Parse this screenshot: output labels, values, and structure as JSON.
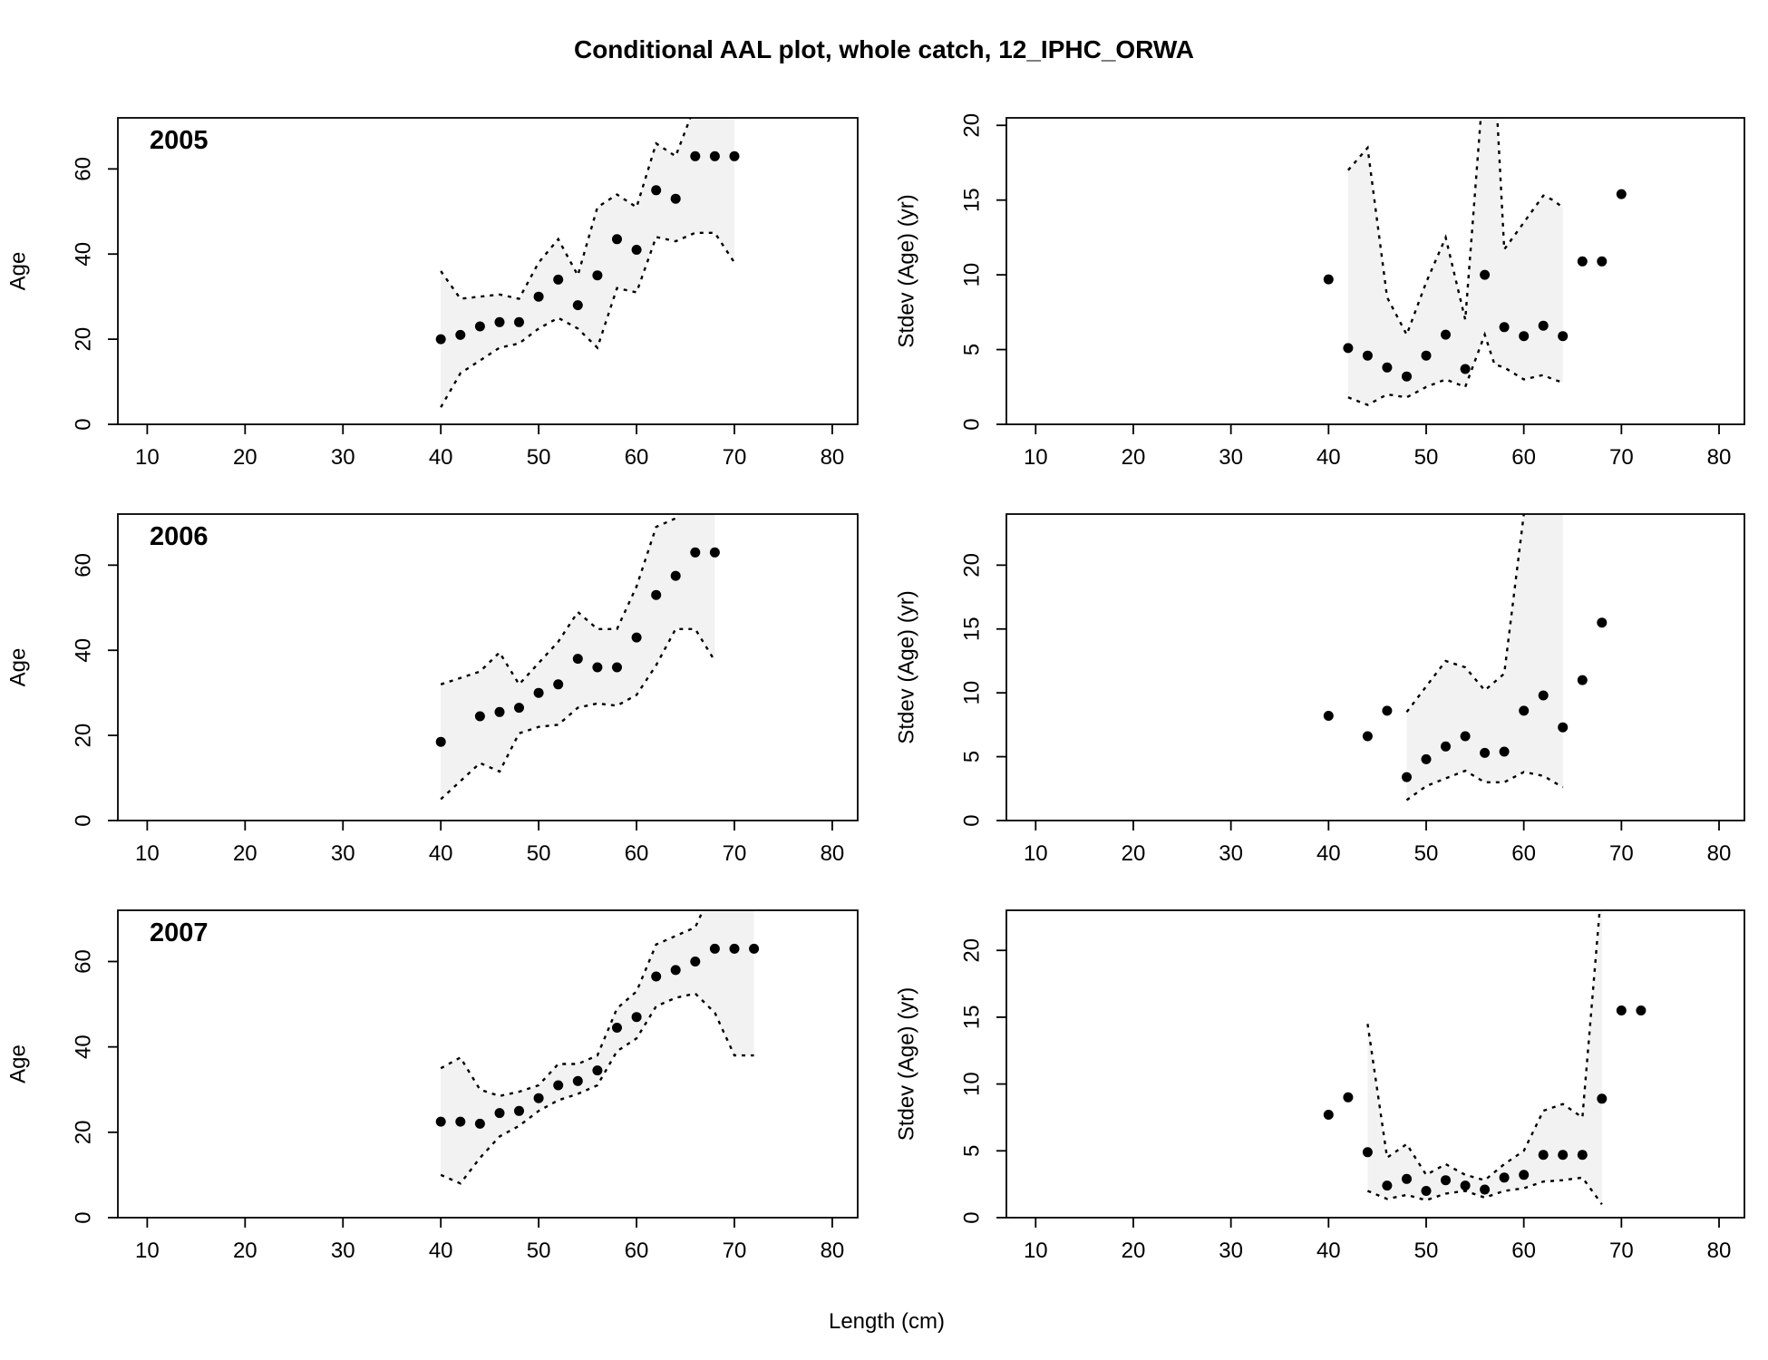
{
  "title": "Conditional AAL plot, whole catch, 12_IPHC_ORWA",
  "xlabel": "Length (cm)",
  "chart_data": [
    {
      "type": "scatter",
      "year": "2005",
      "ylabel": "Age",
      "xlim": [
        10,
        80
      ],
      "ylim": [
        0,
        72
      ],
      "yticks": [
        0,
        20,
        40,
        60
      ],
      "xticks": [
        10,
        20,
        30,
        40,
        50,
        60,
        70,
        80
      ],
      "points": {
        "x": [
          40,
          42,
          44,
          46,
          48,
          50,
          52,
          54,
          56,
          58,
          60,
          62,
          64,
          66,
          68,
          70
        ],
        "y": [
          20,
          21,
          23,
          24,
          24,
          30,
          34,
          28,
          35,
          43.5,
          41,
          55,
          53,
          63,
          63,
          63
        ]
      },
      "band": {
        "x": [
          40,
          42,
          44,
          46,
          48,
          50,
          52,
          54,
          56,
          58,
          60,
          62,
          64,
          66,
          68,
          70
        ],
        "upper": [
          36,
          29.5,
          30,
          30.5,
          29.5,
          38,
          43.5,
          35,
          51,
          54,
          51,
          66,
          63,
          75,
          100,
          100
        ],
        "lower": [
          4,
          12,
          15,
          18,
          19,
          22.5,
          25,
          22.5,
          18,
          32,
          31,
          44,
          43,
          45,
          45,
          38
        ]
      }
    },
    {
      "type": "scatter",
      "year": "",
      "ylabel": "Stdev (Age) (yr)",
      "xlim": [
        10,
        80
      ],
      "ylim": [
        0,
        20.5
      ],
      "yticks": [
        0,
        5,
        10,
        15,
        20
      ],
      "xticks": [
        10,
        20,
        30,
        40,
        50,
        60,
        70,
        80
      ],
      "points": {
        "x": [
          40,
          42,
          44,
          46,
          48,
          50,
          52,
          54,
          56,
          58,
          60,
          62,
          64,
          66,
          68,
          70
        ],
        "y": [
          9.7,
          5.1,
          4.6,
          3.8,
          3.2,
          4.6,
          6,
          3.7,
          10,
          6.5,
          5.9,
          6.6,
          5.9,
          10.9,
          10.9,
          15.4
        ]
      },
      "band": {
        "x": [
          42,
          44,
          46,
          48,
          50,
          52,
          54,
          56,
          57,
          58,
          60,
          62,
          63,
          64
        ],
        "upper": [
          17,
          18.5,
          8.5,
          6,
          9.5,
          12.5,
          7,
          24,
          24,
          11.7,
          13.5,
          15.3,
          15,
          14.5
        ],
        "lower": [
          1.8,
          1.3,
          2,
          1.8,
          2.5,
          3,
          2.5,
          6,
          4,
          3.8,
          3,
          3.3,
          3,
          2.8
        ]
      }
    },
    {
      "type": "scatter",
      "year": "2006",
      "ylabel": "Age",
      "xlim": [
        10,
        80
      ],
      "ylim": [
        0,
        72
      ],
      "yticks": [
        0,
        20,
        40,
        60
      ],
      "xticks": [
        10,
        20,
        30,
        40,
        50,
        60,
        70,
        80
      ],
      "points": {
        "x": [
          40,
          44,
          46,
          48,
          50,
          52,
          54,
          56,
          58,
          60,
          62,
          64,
          66,
          68
        ],
        "y": [
          18.5,
          24.5,
          25.5,
          26.5,
          30,
          32,
          38,
          36,
          36,
          43,
          53,
          57.5,
          63,
          63
        ]
      },
      "band": {
        "x": [
          40,
          44,
          46,
          48,
          50,
          52,
          54,
          56,
          58,
          60,
          62,
          64,
          66,
          68
        ],
        "upper": [
          32,
          35,
          39.5,
          32,
          37,
          42,
          49,
          45,
          45,
          55,
          69,
          71,
          80,
          80
        ],
        "lower": [
          5,
          13.5,
          11.5,
          20.5,
          22,
          22.5,
          26.5,
          27.5,
          27,
          29.5,
          36.5,
          45,
          45,
          37.5
        ]
      }
    },
    {
      "type": "scatter",
      "year": "",
      "ylabel": "Stdev (Age) (yr)",
      "xlim": [
        10,
        80
      ],
      "ylim": [
        0,
        24
      ],
      "yticks": [
        0,
        5,
        10,
        15,
        20
      ],
      "xticks": [
        10,
        20,
        30,
        40,
        50,
        60,
        70,
        80
      ],
      "points": {
        "x": [
          40,
          44,
          46,
          48,
          50,
          52,
          54,
          56,
          58,
          60,
          62,
          64,
          66,
          68
        ],
        "y": [
          8.2,
          6.6,
          8.6,
          3.4,
          4.8,
          5.8,
          6.6,
          5.3,
          5.4,
          8.6,
          9.8,
          7.3,
          11,
          15.5
        ]
      },
      "band": {
        "x": [
          48,
          50,
          52,
          54,
          56,
          58,
          60,
          62,
          64
        ],
        "upper": [
          8.5,
          10.5,
          12.5,
          12,
          10.2,
          11.5,
          24,
          30,
          30
        ],
        "lower": [
          1.6,
          2.7,
          3.3,
          3.9,
          3,
          3,
          3.8,
          3.5,
          2.6
        ]
      }
    },
    {
      "type": "scatter",
      "year": "2007",
      "ylabel": "Age",
      "xlim": [
        10,
        80
      ],
      "ylim": [
        0,
        72
      ],
      "yticks": [
        0,
        20,
        40,
        60
      ],
      "xticks": [
        10,
        20,
        30,
        40,
        50,
        60,
        70,
        80
      ],
      "points": {
        "x": [
          40,
          42,
          44,
          46,
          48,
          50,
          52,
          54,
          56,
          58,
          60,
          62,
          64,
          66,
          68,
          70,
          72
        ],
        "y": [
          22.5,
          22.5,
          22,
          24.5,
          25,
          28,
          31,
          32,
          34.5,
          44.5,
          47,
          56.5,
          58,
          60,
          63,
          63,
          63
        ]
      },
      "band": {
        "x": [
          40,
          42,
          44,
          46,
          48,
          50,
          52,
          54,
          56,
          58,
          60,
          62,
          64,
          66,
          68,
          70,
          72
        ],
        "upper": [
          35,
          37.5,
          30,
          28.5,
          29.5,
          31,
          36,
          36,
          38,
          49,
          53,
          64,
          66,
          68,
          78,
          80,
          80
        ],
        "lower": [
          10,
          8,
          14,
          19,
          21.5,
          25,
          27.5,
          29,
          31,
          39,
          42,
          49.5,
          51.5,
          52.5,
          48,
          38,
          38
        ]
      }
    },
    {
      "type": "scatter",
      "year": "",
      "ylabel": "Stdev (Age) (yr)",
      "xlim": [
        10,
        80
      ],
      "ylim": [
        0,
        23
      ],
      "yticks": [
        0,
        5,
        10,
        15,
        20
      ],
      "xticks": [
        10,
        20,
        30,
        40,
        50,
        60,
        70,
        80
      ],
      "points": {
        "x": [
          40,
          42,
          44,
          46,
          48,
          50,
          52,
          54,
          56,
          58,
          60,
          62,
          64,
          66,
          68,
          70,
          72
        ],
        "y": [
          7.7,
          9,
          4.9,
          2.4,
          2.9,
          2,
          2.8,
          2.4,
          2.1,
          3,
          3.2,
          4.7,
          4.7,
          4.7,
          8.9,
          15.5,
          15.5
        ]
      },
      "band": {
        "x": [
          44,
          46,
          48,
          50,
          52,
          54,
          56,
          58,
          60,
          62,
          64,
          66,
          68
        ],
        "upper": [
          14.5,
          4.5,
          5.5,
          3.2,
          4,
          3.2,
          2.8,
          4,
          5,
          8,
          8.5,
          7.5,
          25
        ],
        "lower": [
          2,
          1.4,
          1.7,
          1.3,
          1.8,
          2,
          1.5,
          2,
          2.2,
          2.7,
          2.8,
          3,
          1
        ]
      }
    }
  ]
}
